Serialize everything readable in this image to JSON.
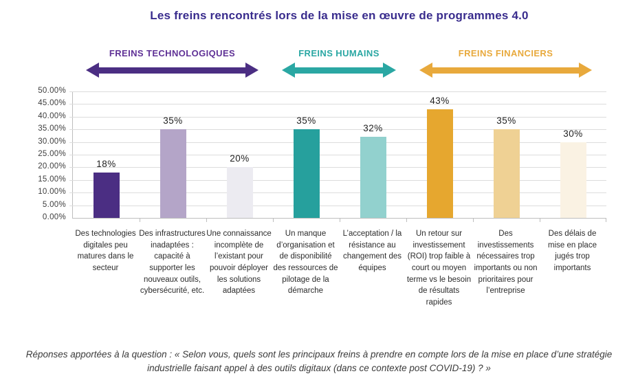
{
  "caption": "Réponses apportées à la question : « Selon vous, quels sont les principaux freins à prendre en compte lors de la mise en place d’une stratégie industrielle faisant appel à des outils digitaux (dans ce contexte post COVID-19) ? »",
  "chart_data": {
    "type": "bar",
    "title": "Les freins rencontrés lors de la mise en œuvre de programmes 4.0",
    "xlabel": "",
    "ylabel": "",
    "ylim": [
      0,
      50
    ],
    "grid": true,
    "legend": "none",
    "y_ticks": [
      "50.00%",
      "45.00%",
      "40.00%",
      "35.00%",
      "30.00%",
      "25.00%",
      "20.00%",
      "15.00%",
      "10.00%",
      "5.00%",
      "0.00%"
    ],
    "categories": [
      "Des technologies digitales peu matures dans le secteur",
      "Des infrastructures inadaptées : capacité à supporter les nouveaux outils, cybersécurité, etc.",
      "Une connaissance incomplète de l’existant pour pouvoir déployer les solutions adaptées",
      "Un manque d’organisation et de disponibilité des ressources de pilotage de la démarche",
      "L’acceptation / la résistance au changement des équipes",
      "Un retour sur investissement (ROI) trop faible à court ou moyen terme vs le besoin de résultats rapides",
      "Des investissements nécessaires trop importants ou non prioritaires pour l’entreprise",
      "Des délais de mise en place jugés trop importants"
    ],
    "values": [
      18,
      35,
      20,
      35,
      32,
      43,
      35,
      30
    ],
    "value_labels": [
      "18%",
      "35%",
      "20%",
      "35%",
      "32%",
      "43%",
      "35%",
      "30%"
    ],
    "bar_colors": [
      "#4b2e83",
      "#b4a5c8",
      "#ecebf1",
      "#26a09d",
      "#92d1ce",
      "#e6a72f",
      "#efd194",
      "#faf2e3"
    ],
    "groups": [
      {
        "label": "FREINS TECHNOLOGIQUES",
        "text_color": "#5f3196",
        "arrow_color": "#4b2e83",
        "from_category": 0,
        "to_category": 2
      },
      {
        "label": "FREINS HUMAINS",
        "text_color": "#2aa7a3",
        "arrow_color": "#2aa7a3",
        "from_category": 3,
        "to_category": 4
      },
      {
        "label": "FREINS FINANCIERS",
        "text_color": "#e8a93c",
        "arrow_color": "#e8a93c",
        "from_category": 5,
        "to_category": 7
      }
    ],
    "axis_color": "#bdbdbd",
    "gridline_color": "#dcdcdc",
    "title_color": "#392c8d"
  }
}
